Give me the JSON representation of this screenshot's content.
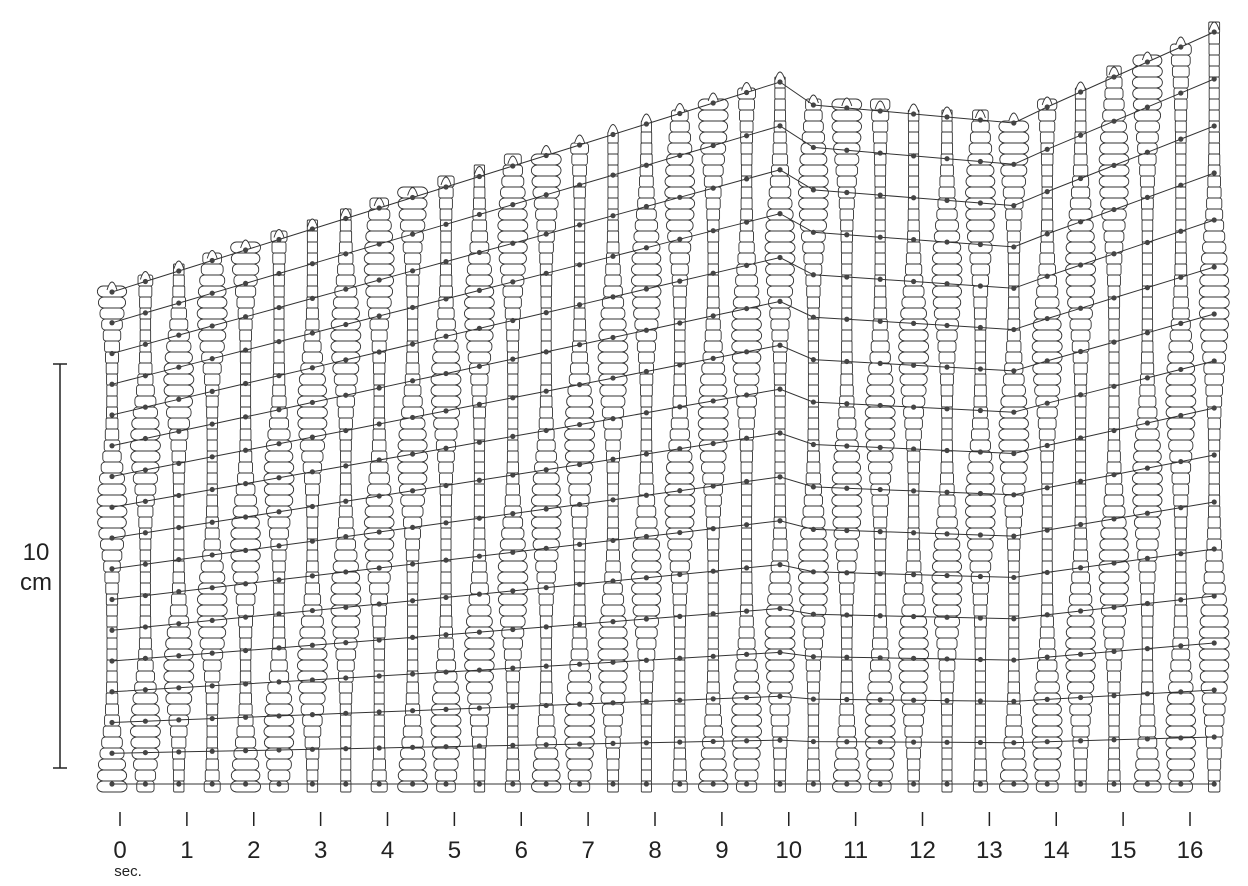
{
  "scale_bar": {
    "value": "10",
    "unit": "cm"
  },
  "time_axis": {
    "labels": [
      "0",
      "1",
      "2",
      "3",
      "4",
      "5",
      "6",
      "7",
      "8",
      "9",
      "10",
      "11",
      "12",
      "13",
      "14",
      "15",
      "16"
    ],
    "unit": "sec."
  }
}
